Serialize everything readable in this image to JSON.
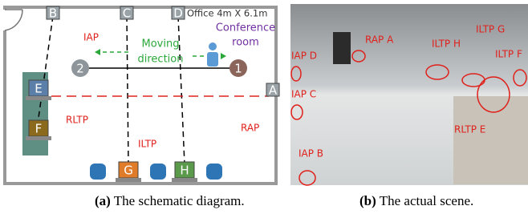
{
  "diagram": {
    "room_label": "Office 4m X 6.1m",
    "aps": [
      "A",
      "B",
      "C",
      "D"
    ],
    "laptops": [
      "E",
      "F",
      "G",
      "H"
    ],
    "points": [
      "1",
      "2"
    ],
    "iap": "IAP",
    "moving": [
      "Moving",
      "direction"
    ],
    "conference": [
      "Conference",
      "room"
    ],
    "rltp": "RLTP",
    "rap": "RAP",
    "iltp": "ILTP"
  },
  "photo": {
    "labels": [
      "RAP A",
      "ILTP H",
      "ILTP G",
      "ILTP F",
      "IAP D",
      "IAP C",
      "RLTP E",
      "IAP B"
    ]
  },
  "captions": [
    {
      "label": "(a)",
      "text": "The schematic diagram."
    },
    {
      "label": "(b)",
      "text": "The actual scene."
    }
  ]
}
